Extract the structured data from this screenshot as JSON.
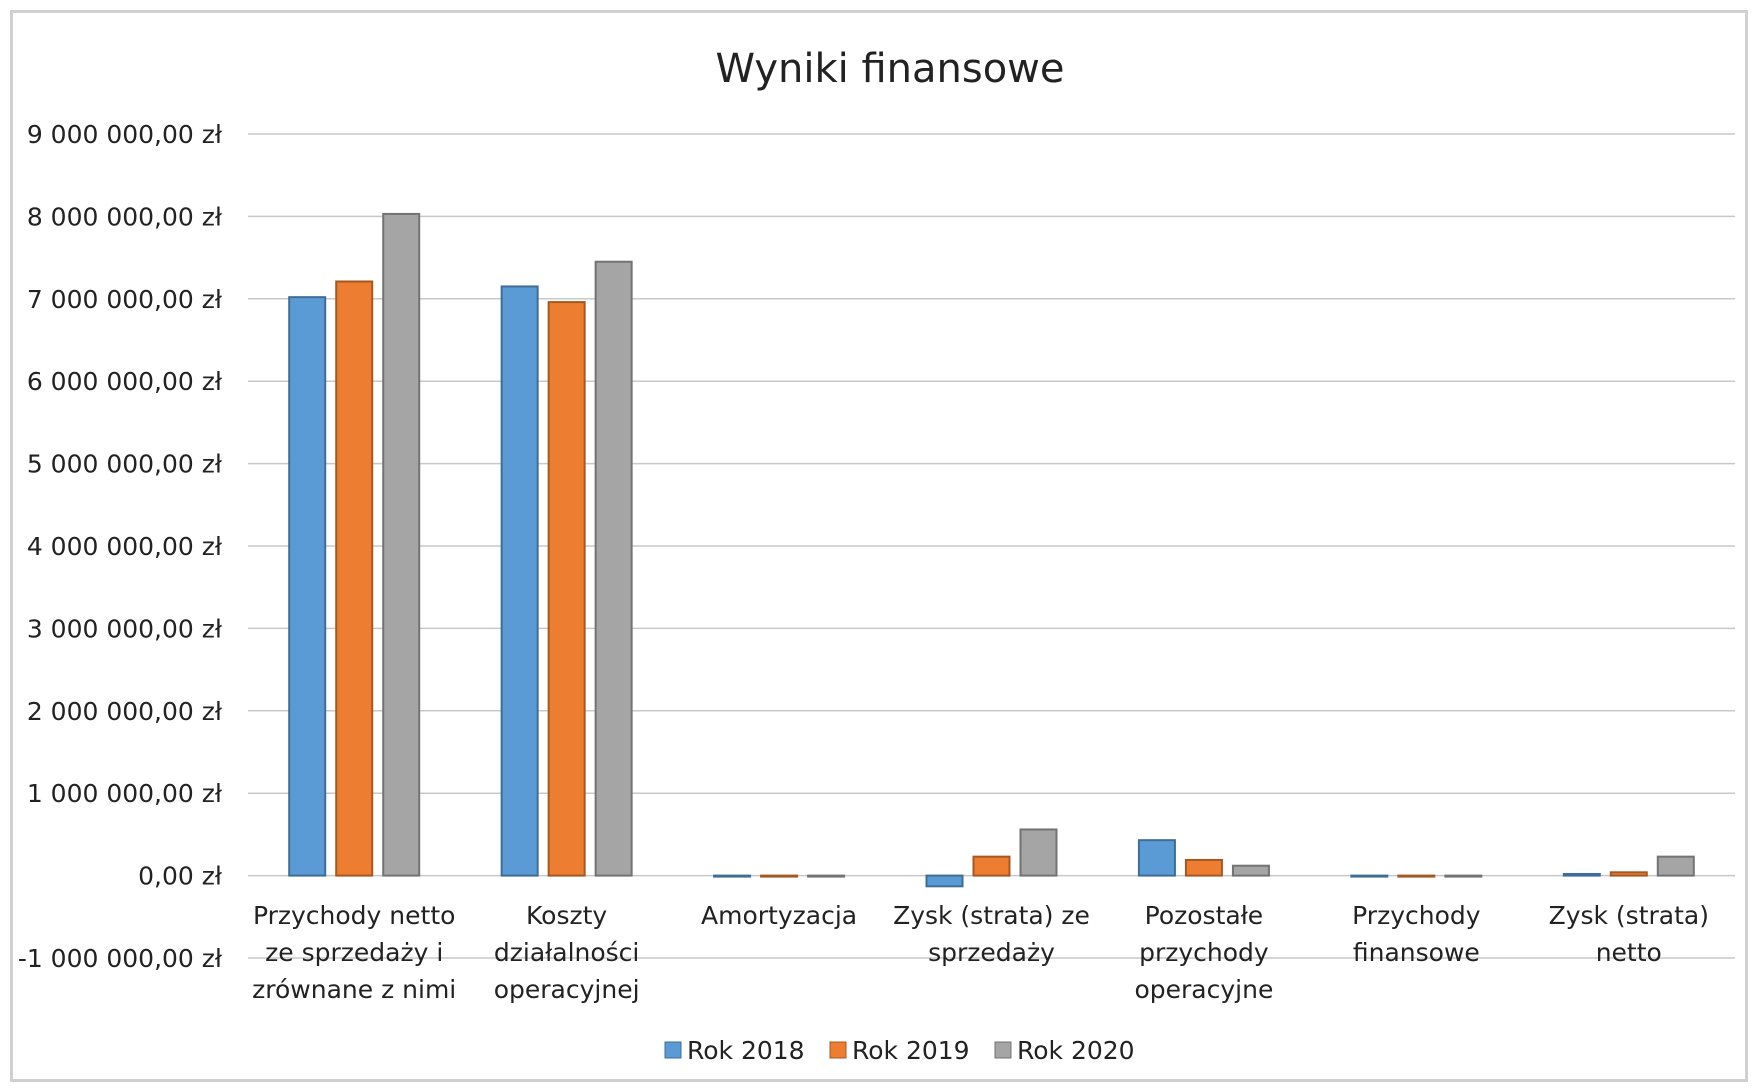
{
  "chart_data": {
    "type": "bar",
    "title": "Wyniki finansowe",
    "xlabel": "",
    "ylabel": "",
    "ylim": [
      -1000000,
      9000000
    ],
    "yticks": [
      {
        "value": 9000000,
        "label": "9 000 000,00 zł"
      },
      {
        "value": 8000000,
        "label": "8 000 000,00 zł"
      },
      {
        "value": 7000000,
        "label": "7 000 000,00 zł"
      },
      {
        "value": 6000000,
        "label": "6 000 000,00 zł"
      },
      {
        "value": 5000000,
        "label": "5 000 000,00 zł"
      },
      {
        "value": 4000000,
        "label": "4 000 000,00 zł"
      },
      {
        "value": 3000000,
        "label": "3 000 000,00 zł"
      },
      {
        "value": 2000000,
        "label": "2 000 000,00 zł"
      },
      {
        "value": 1000000,
        "label": "1 000 000,00 zł"
      },
      {
        "value": 0,
        "label": "0,00 zł"
      },
      {
        "value": -1000000,
        "label": "-1 000 000,00 zł"
      }
    ],
    "categories": [
      [
        "Przychody netto",
        "ze sprzedaży i",
        "zrównane z nimi"
      ],
      [
        "Koszty",
        "działalności",
        "operacyjnej"
      ],
      [
        "Amortyzacja"
      ],
      [
        "Zysk (strata) ze",
        "sprzedaży"
      ],
      [
        "Pozostałe",
        "przychody",
        "operacyjne"
      ],
      [
        "Przychody",
        "finansowe"
      ],
      [
        "Zysk (strata)",
        "netto"
      ]
    ],
    "series": [
      {
        "name": "Rok 2018",
        "color": "#5b9bd5",
        "values": [
          7020000,
          7150000,
          0,
          -130000,
          430000,
          0,
          20000
        ]
      },
      {
        "name": "Rok 2019",
        "color": "#ed7d31",
        "values": [
          7210000,
          6960000,
          0,
          230000,
          190000,
          0,
          40000
        ]
      },
      {
        "name": "Rok 2020",
        "color": "#a5a5a5",
        "values": [
          8030000,
          7450000,
          0,
          560000,
          120000,
          0,
          230000
        ]
      }
    ],
    "grid": true,
    "legend_position": "bottom"
  }
}
